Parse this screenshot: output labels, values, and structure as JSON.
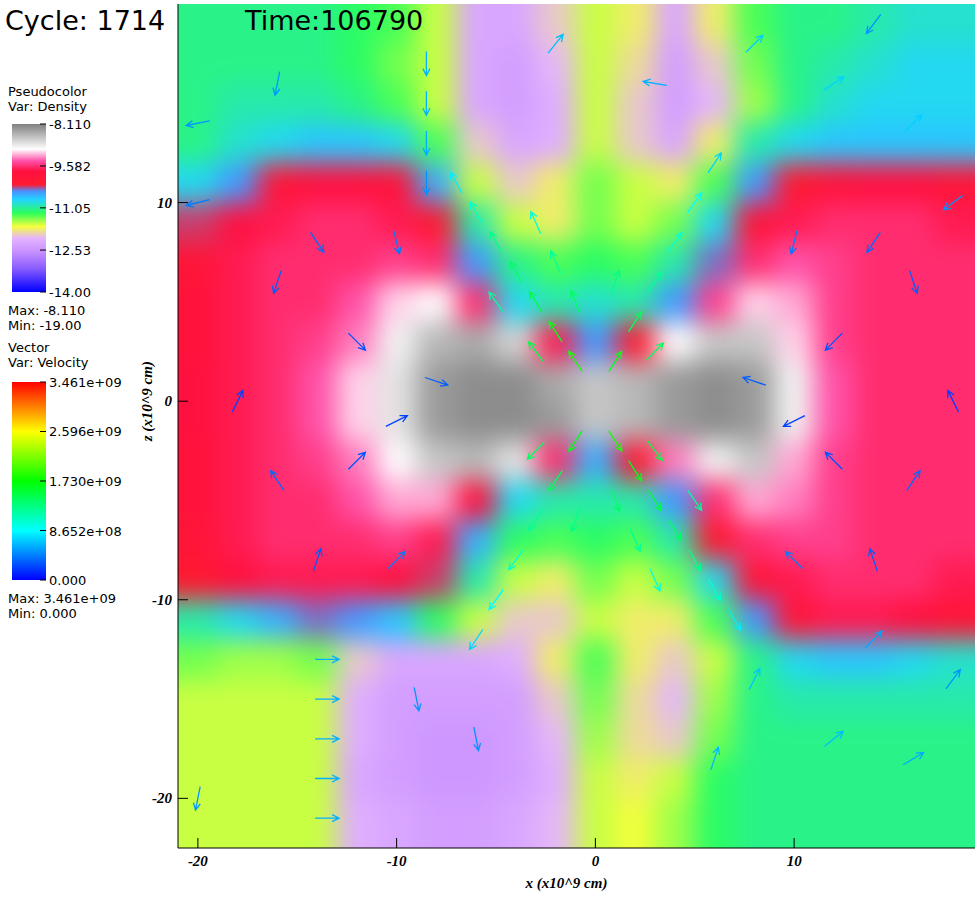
{
  "chart_data": {
    "type": "vector_field",
    "title": "Cycle: 1714",
    "subtitle": "Time:106790",
    "x_label": "x (x10^9 cm)",
    "y_label": "z (x10^9 cm)",
    "xlim": [
      -21,
      19.1
    ],
    "ylim": [
      -22.5,
      20
    ],
    "xticks": [
      -20,
      -10,
      0,
      10
    ],
    "yticks": [
      -20,
      -10,
      0,
      10
    ],
    "density": {
      "legend_title": "Pseudocolor",
      "variable": "Var: Density",
      "range": [
        -14,
        -8.11
      ],
      "ticks": [
        {
          "value": -8.11,
          "label": "-8.110"
        },
        -9.582,
        -11.05,
        -12.53,
        {
          "value": -14,
          "label": "-14.00"
        }
      ],
      "max_label": "Max: -8.110",
      "min_label": "Min: -19.00",
      "x": [
        -20,
        -18,
        -16,
        -14,
        -12,
        -10,
        -8,
        -6,
        -4,
        -2,
        0,
        2,
        4,
        6,
        8,
        10,
        12,
        14,
        16,
        18
      ],
      "z": [
        19,
        17,
        15,
        13,
        11,
        9,
        7,
        5,
        3,
        1,
        -1,
        -3,
        -5,
        -7,
        -9,
        -11,
        -13,
        -15,
        -17,
        -19,
        -21
      ],
      "values": [
        [
          -11.1,
          -11.1,
          -11.1,
          -11.1,
          -11.2,
          -11.3,
          -11.6,
          -12.3,
          -12.3,
          -12.0,
          -11.6,
          -11.8,
          -12.3,
          -11.8,
          -11.3,
          -11.1,
          -11.1,
          -11.0,
          -10.9,
          -10.9
        ],
        [
          -11.1,
          -11.1,
          -11.1,
          -11.1,
          -11.2,
          -11.4,
          -11.6,
          -12.3,
          -12.4,
          -12.1,
          -11.6,
          -11.9,
          -12.4,
          -12.0,
          -11.4,
          -11.1,
          -11.0,
          -10.9,
          -10.8,
          -10.8
        ],
        [
          -11.1,
          -11.0,
          -11.0,
          -11.0,
          -11.1,
          -11.3,
          -11.6,
          -12.3,
          -12.4,
          -12.2,
          -11.6,
          -12.0,
          -12.4,
          -12.1,
          -11.5,
          -11.1,
          -10.9,
          -10.8,
          -10.8,
          -10.8
        ],
        [
          -11.1,
          -10.9,
          -10.8,
          -10.7,
          -10.7,
          -10.8,
          -11.3,
          -12.0,
          -12.3,
          -12.2,
          -11.6,
          -12.0,
          -12.3,
          -11.8,
          -11.0,
          -10.8,
          -10.7,
          -10.7,
          -10.7,
          -10.7
        ],
        [
          -10.8,
          -10.5,
          -10.0,
          -9.8,
          -9.8,
          -9.9,
          -10.6,
          -11.6,
          -12.0,
          -11.8,
          -11.4,
          -11.6,
          -11.8,
          -11.3,
          -10.5,
          -10.2,
          -9.9,
          -9.8,
          -9.8,
          -10.0
        ],
        [
          -10.3,
          -9.8,
          -9.7,
          -9.6,
          -9.6,
          -9.7,
          -10.2,
          -11.0,
          -11.6,
          -11.8,
          -11.4,
          -11.6,
          -11.4,
          -10.8,
          -10.0,
          -9.7,
          -9.6,
          -9.6,
          -9.6,
          -9.7
        ],
        [
          -10.0,
          -9.7,
          -9.6,
          -9.6,
          -9.6,
          -9.5,
          -9.6,
          -10.5,
          -11.1,
          -11.3,
          -11.2,
          -11.3,
          -11.0,
          -10.4,
          -9.6,
          -9.4,
          -9.5,
          -9.6,
          -9.6,
          -9.6
        ],
        [
          -9.9,
          -9.7,
          -9.6,
          -9.6,
          -9.4,
          -9.1,
          -9.0,
          -9.6,
          -10.8,
          -11.0,
          -10.9,
          -11.0,
          -10.5,
          -9.5,
          -9.1,
          -9.2,
          -9.5,
          -9.6,
          -9.6,
          -9.6
        ],
        [
          -9.9,
          -9.7,
          -9.6,
          -9.5,
          -9.3,
          -8.9,
          -8.5,
          -8.4,
          -8.7,
          -9.7,
          -10.5,
          -10.2,
          -9.0,
          -8.6,
          -8.6,
          -9.1,
          -9.5,
          -9.6,
          -9.6,
          -9.6
        ],
        [
          -9.8,
          -9.7,
          -9.6,
          -9.4,
          -9.1,
          -8.8,
          -8.3,
          -8.2,
          -8.2,
          -8.4,
          -8.6,
          -8.5,
          -8.3,
          -8.2,
          -8.3,
          -8.9,
          -9.4,
          -9.6,
          -9.6,
          -9.6
        ],
        [
          -9.8,
          -9.7,
          -9.6,
          -9.4,
          -9.1,
          -8.8,
          -8.3,
          -8.2,
          -8.2,
          -8.3,
          -8.6,
          -8.5,
          -8.3,
          -8.2,
          -8.3,
          -8.9,
          -9.4,
          -9.6,
          -9.6,
          -9.6
        ],
        [
          -9.9,
          -9.7,
          -9.6,
          -9.5,
          -9.3,
          -9.0,
          -8.6,
          -8.5,
          -8.8,
          -9.6,
          -10.6,
          -10.2,
          -9.3,
          -8.9,
          -8.6,
          -9.2,
          -9.5,
          -9.6,
          -9.6,
          -9.6
        ],
        [
          -9.9,
          -9.7,
          -9.6,
          -9.6,
          -9.4,
          -9.2,
          -9.2,
          -9.8,
          -10.8,
          -11.0,
          -11.0,
          -11.0,
          -10.5,
          -9.6,
          -9.2,
          -9.3,
          -9.5,
          -9.6,
          -9.6,
          -9.6
        ],
        [
          -10.0,
          -9.7,
          -9.6,
          -9.6,
          -9.6,
          -9.5,
          -9.7,
          -10.6,
          -11.2,
          -11.3,
          -11.2,
          -11.3,
          -11.0,
          -10.2,
          -9.6,
          -9.5,
          -9.5,
          -9.6,
          -9.6,
          -9.6
        ],
        [
          -10.2,
          -9.8,
          -9.7,
          -9.7,
          -9.7,
          -9.8,
          -10.3,
          -11.0,
          -11.6,
          -11.8,
          -11.4,
          -11.6,
          -11.4,
          -10.8,
          -10.0,
          -9.7,
          -9.6,
          -9.6,
          -9.6,
          -9.7
        ],
        [
          -11.0,
          -10.8,
          -10.6,
          -10.4,
          -10.5,
          -10.7,
          -11.2,
          -11.6,
          -12.0,
          -12.0,
          -11.6,
          -11.8,
          -11.8,
          -11.3,
          -10.5,
          -10.0,
          -9.7,
          -9.7,
          -9.8,
          -10.0
        ],
        [
          -11.4,
          -11.5,
          -11.5,
          -11.4,
          -12.0,
          -12.3,
          -12.3,
          -12.3,
          -12.2,
          -11.8,
          -11.3,
          -11.8,
          -12.0,
          -11.6,
          -11.1,
          -10.8,
          -10.7,
          -10.7,
          -10.8,
          -10.9
        ],
        [
          -11.6,
          -11.6,
          -11.6,
          -11.6,
          -12.2,
          -12.4,
          -12.4,
          -12.4,
          -12.4,
          -12.0,
          -11.4,
          -11.9,
          -12.1,
          -11.5,
          -11.1,
          -11.0,
          -11.0,
          -11.0,
          -11.0,
          -11.0
        ],
        [
          -11.6,
          -11.6,
          -11.6,
          -11.6,
          -12.2,
          -12.4,
          -12.5,
          -12.5,
          -12.4,
          -12.1,
          -11.5,
          -11.9,
          -12.0,
          -11.4,
          -11.1,
          -11.1,
          -11.1,
          -11.1,
          -11.1,
          -11.1
        ],
        [
          -11.6,
          -11.6,
          -11.6,
          -11.6,
          -12.3,
          -12.4,
          -12.5,
          -12.5,
          -12.4,
          -12.2,
          -11.6,
          -11.8,
          -11.6,
          -11.2,
          -11.1,
          -11.1,
          -11.1,
          -11.1,
          -11.1,
          -11.1
        ],
        [
          -11.6,
          -11.6,
          -11.6,
          -11.6,
          -12.2,
          -12.3,
          -12.4,
          -12.4,
          -12.3,
          -12.1,
          -11.6,
          -11.7,
          -11.5,
          -11.2,
          -11.1,
          -11.1,
          -11.1,
          -11.1,
          -11.1,
          -11.1
        ]
      ]
    },
    "velocity": {
      "legend_title": "Vector",
      "variable": "Var: Velocity",
      "range": [
        0,
        3461000000.0
      ],
      "ticks": [
        {
          "value": 3461000000.0,
          "label": "3.461e+09"
        },
        {
          "value": 2596000000.0,
          "label": "2.596e+09"
        },
        {
          "value": 1730000000.0,
          "label": "1.730e+09"
        },
        {
          "value": 865200000.0,
          "label": "8.652e+08"
        },
        {
          "value": 0,
          "label": "0.000"
        }
      ],
      "max_label": "Max: 3.461e+09",
      "min_label": "Min: 0.000",
      "x": [
        -1,
        -2,
        -3,
        -4,
        -5,
        -6,
        -7,
        -3,
        -5,
        -1,
        -2,
        -3,
        1,
        2,
        3,
        4,
        5,
        6,
        3,
        1,
        -1,
        -2,
        -3,
        -4,
        -5,
        -6,
        -3,
        -1,
        1,
        2,
        3,
        4,
        5,
        6,
        7,
        3,
        5,
        1,
        2,
        3,
        -8,
        -10,
        -12,
        -12,
        8,
        10,
        12,
        12,
        -16,
        -16,
        -18,
        -14,
        -10,
        -10,
        -14,
        16,
        16,
        18,
        14,
        10,
        10,
        14,
        -8.5,
        -8.5,
        -8.5,
        -8.5,
        -16,
        -20,
        -20,
        -13.5,
        -13.5,
        -13.5,
        -13.5,
        -13.5,
        -20,
        -9,
        -6,
        6,
        8,
        12,
        16,
        14,
        18,
        8,
        12,
        16,
        14,
        18,
        -2,
        3
      ],
      "z": [
        2,
        3.5,
        5,
        6.5,
        8,
        9.5,
        11,
        2.5,
        5,
        5,
        7,
        9,
        2,
        4,
        6,
        8,
        10,
        12,
        2.5,
        6,
        -2,
        -4,
        -6,
        -8,
        -10,
        -12,
        -2.5,
        -6,
        -2,
        -3.5,
        -5,
        -6.5,
        -8,
        -9.5,
        -11,
        -2.5,
        -5,
        -5,
        -7,
        -9,
        1,
        -1,
        3,
        -3,
        1,
        -1,
        3,
        -3,
        6,
        -4,
        0,
        8,
        8,
        -8,
        -8,
        6,
        -4,
        0,
        8,
        8,
        -8,
        -8,
        17,
        15,
        13,
        11,
        16,
        14,
        10,
        -13,
        -15,
        -17,
        -19,
        -21,
        -20,
        -15,
        -17,
        -18,
        -14,
        -17,
        -18,
        -12,
        -14,
        18,
        16,
        14,
        19,
        10,
        18,
        16
      ],
      "vx": [
        -1000000000.0,
        -900000000.0,
        -800000000.0,
        -700000000.0,
        -600000000.0,
        -500000000.0,
        -400000000.0,
        -900000000.0,
        -700000000.0,
        -500000000.0,
        -500000000.0,
        -400000000.0,
        900000000.0,
        800000000.0,
        700000000.0,
        600000000.0,
        500000000.0,
        400000000.0,
        1000000000.0,
        400000000.0,
        -900000000.0,
        -800000000.0,
        -700000000.0,
        -600000000.0,
        -500000000.0,
        -400000000.0,
        -1000000000.0,
        -400000000.0,
        1000000000.0,
        900000000.0,
        800000000.0,
        700000000.0,
        600000000.0,
        500000000.0,
        400000000.0,
        900000000.0,
        700000000.0,
        500000000.0,
        500000000.0,
        400000000.0,
        300000000.0,
        200000000.0,
        200000000.0,
        200000000.0,
        -300000000.0,
        -200000000.0,
        -200000000.0,
        -200000000.0,
        -100000000.0,
        -200000000.0,
        100000000.0,
        200000000.0,
        100000000.0,
        300000000.0,
        100000000.0,
        100000000.0,
        200000000.0,
        -100000000.0,
        -200000000.0,
        -100000000.0,
        -300000000.0,
        -100000000.0,
        0,
        0,
        0,
        0,
        -100000000.0,
        -500000000.0,
        -400000000.0,
        600000000.0,
        600000000.0,
        600000000.0,
        600000000.0,
        600000000.0,
        -100000000.0,
        100000000.0,
        100000000.0,
        200000000.0,
        300000000.0,
        500000000.0,
        500000000.0,
        400000000.0,
        300000000.0,
        500000000.0,
        600000000.0,
        500000000.0,
        -300000000.0,
        -400000000.0,
        400000000.0,
        -600000000.0
      ],
      "vz": [
        1500000000.0,
        1400000000.0,
        1300000000.0,
        1200000000.0,
        1100000000.0,
        900000000.0,
        700000000.0,
        1200000000.0,
        1000000000.0,
        1300000000.0,
        1100000000.0,
        900000000.0,
        1400000000.0,
        1200000000.0,
        1000000000.0,
        800000000.0,
        700000000.0,
        600000000.0,
        1000000000.0,
        1200000000.0,
        -1400000000.0,
        -1200000000.0,
        -1000000000.0,
        -800000000.0,
        -700000000.0,
        -600000000.0,
        -1000000000.0,
        -1200000000.0,
        -1500000000.0,
        -1400000000.0,
        -1300000000.0,
        -1200000000.0,
        -1100000000.0,
        -900000000.0,
        -700000000.0,
        -1200000000.0,
        -1000000000.0,
        -1300000000.0,
        -1100000000.0,
        -900000000.0,
        -100000000.0,
        100000000.0,
        -200000000.0,
        200000000.0,
        100000000.0,
        -100000000.0,
        -200000000.0,
        200000000.0,
        -300000000.0,
        300000000.0,
        200000000.0,
        -300000000.0,
        -400000000.0,
        300000000.0,
        300000000.0,
        -300000000.0,
        300000000.0,
        200000000.0,
        -300000000.0,
        -400000000.0,
        300000000.0,
        300000000.0,
        -600000000.0,
        -600000000.0,
        -600000000.0,
        -500000000.0,
        -500000000.0,
        -100000000.0,
        -100000000.0,
        0,
        0,
        0,
        0,
        0,
        -500000000.0,
        -500000000.0,
        -500000000.0,
        600000000.0,
        600000000.0,
        400000000.0,
        300000000.0,
        400000000.0,
        400000000.0,
        500000000.0,
        400000000.0,
        500000000.0,
        -400000000.0,
        -300000000.0,
        500000000.0,
        100000000.0
      ]
    }
  }
}
